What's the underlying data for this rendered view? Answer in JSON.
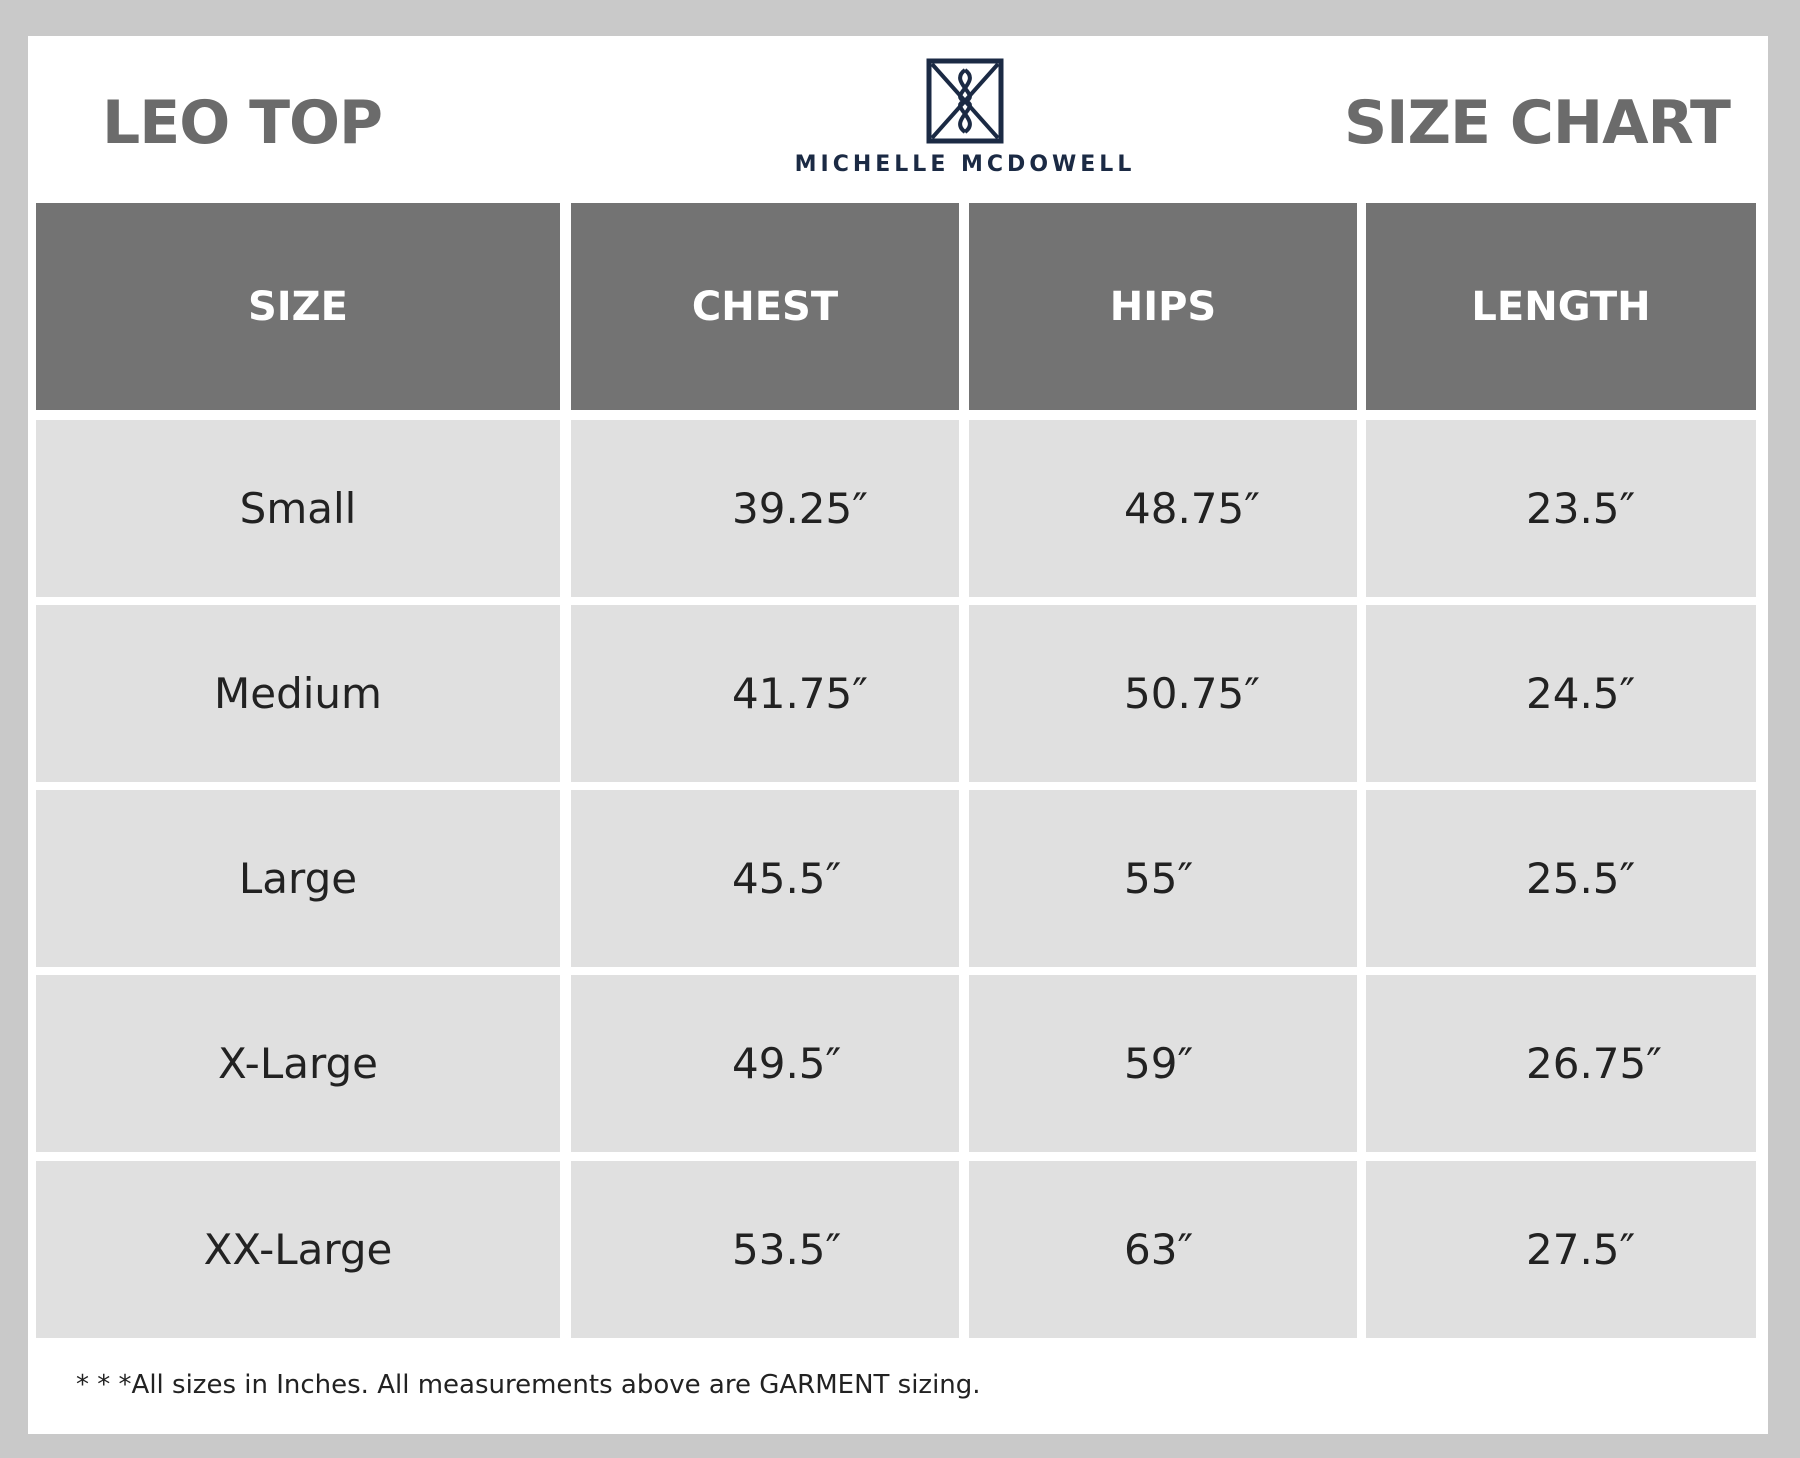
{
  "header": {
    "product_name": "LEO TOP",
    "chart_title": "SIZE CHART",
    "brand_name": "MICHELLE MCDOWELL"
  },
  "colors": {
    "header_fill": "#737373",
    "cell_fill": "#e0e0e0",
    "brand_navy": "#1b2a44",
    "title_gray": "#6b6b6b"
  },
  "table": {
    "columns": [
      "SIZE",
      "CHEST",
      "HIPS",
      "LENGTH"
    ],
    "rows": [
      {
        "size": "Small",
        "chest": "39.25″",
        "hips": "48.75″",
        "length": "23.5″"
      },
      {
        "size": "Medium",
        "chest": "41.75″",
        "hips": "50.75″",
        "length": "24.5″"
      },
      {
        "size": "Large",
        "chest": "45.5″",
        "hips": "55″",
        "length": "25.5″"
      },
      {
        "size": "X-Large",
        "chest": "49.5″",
        "hips": "59″",
        "length": "26.75″"
      },
      {
        "size": "XX-Large",
        "chest": "53.5″",
        "hips": "63″",
        "length": "27.5″"
      }
    ]
  },
  "footnote": "* * *All sizes in Inches. All measurements above are GARMENT sizing."
}
